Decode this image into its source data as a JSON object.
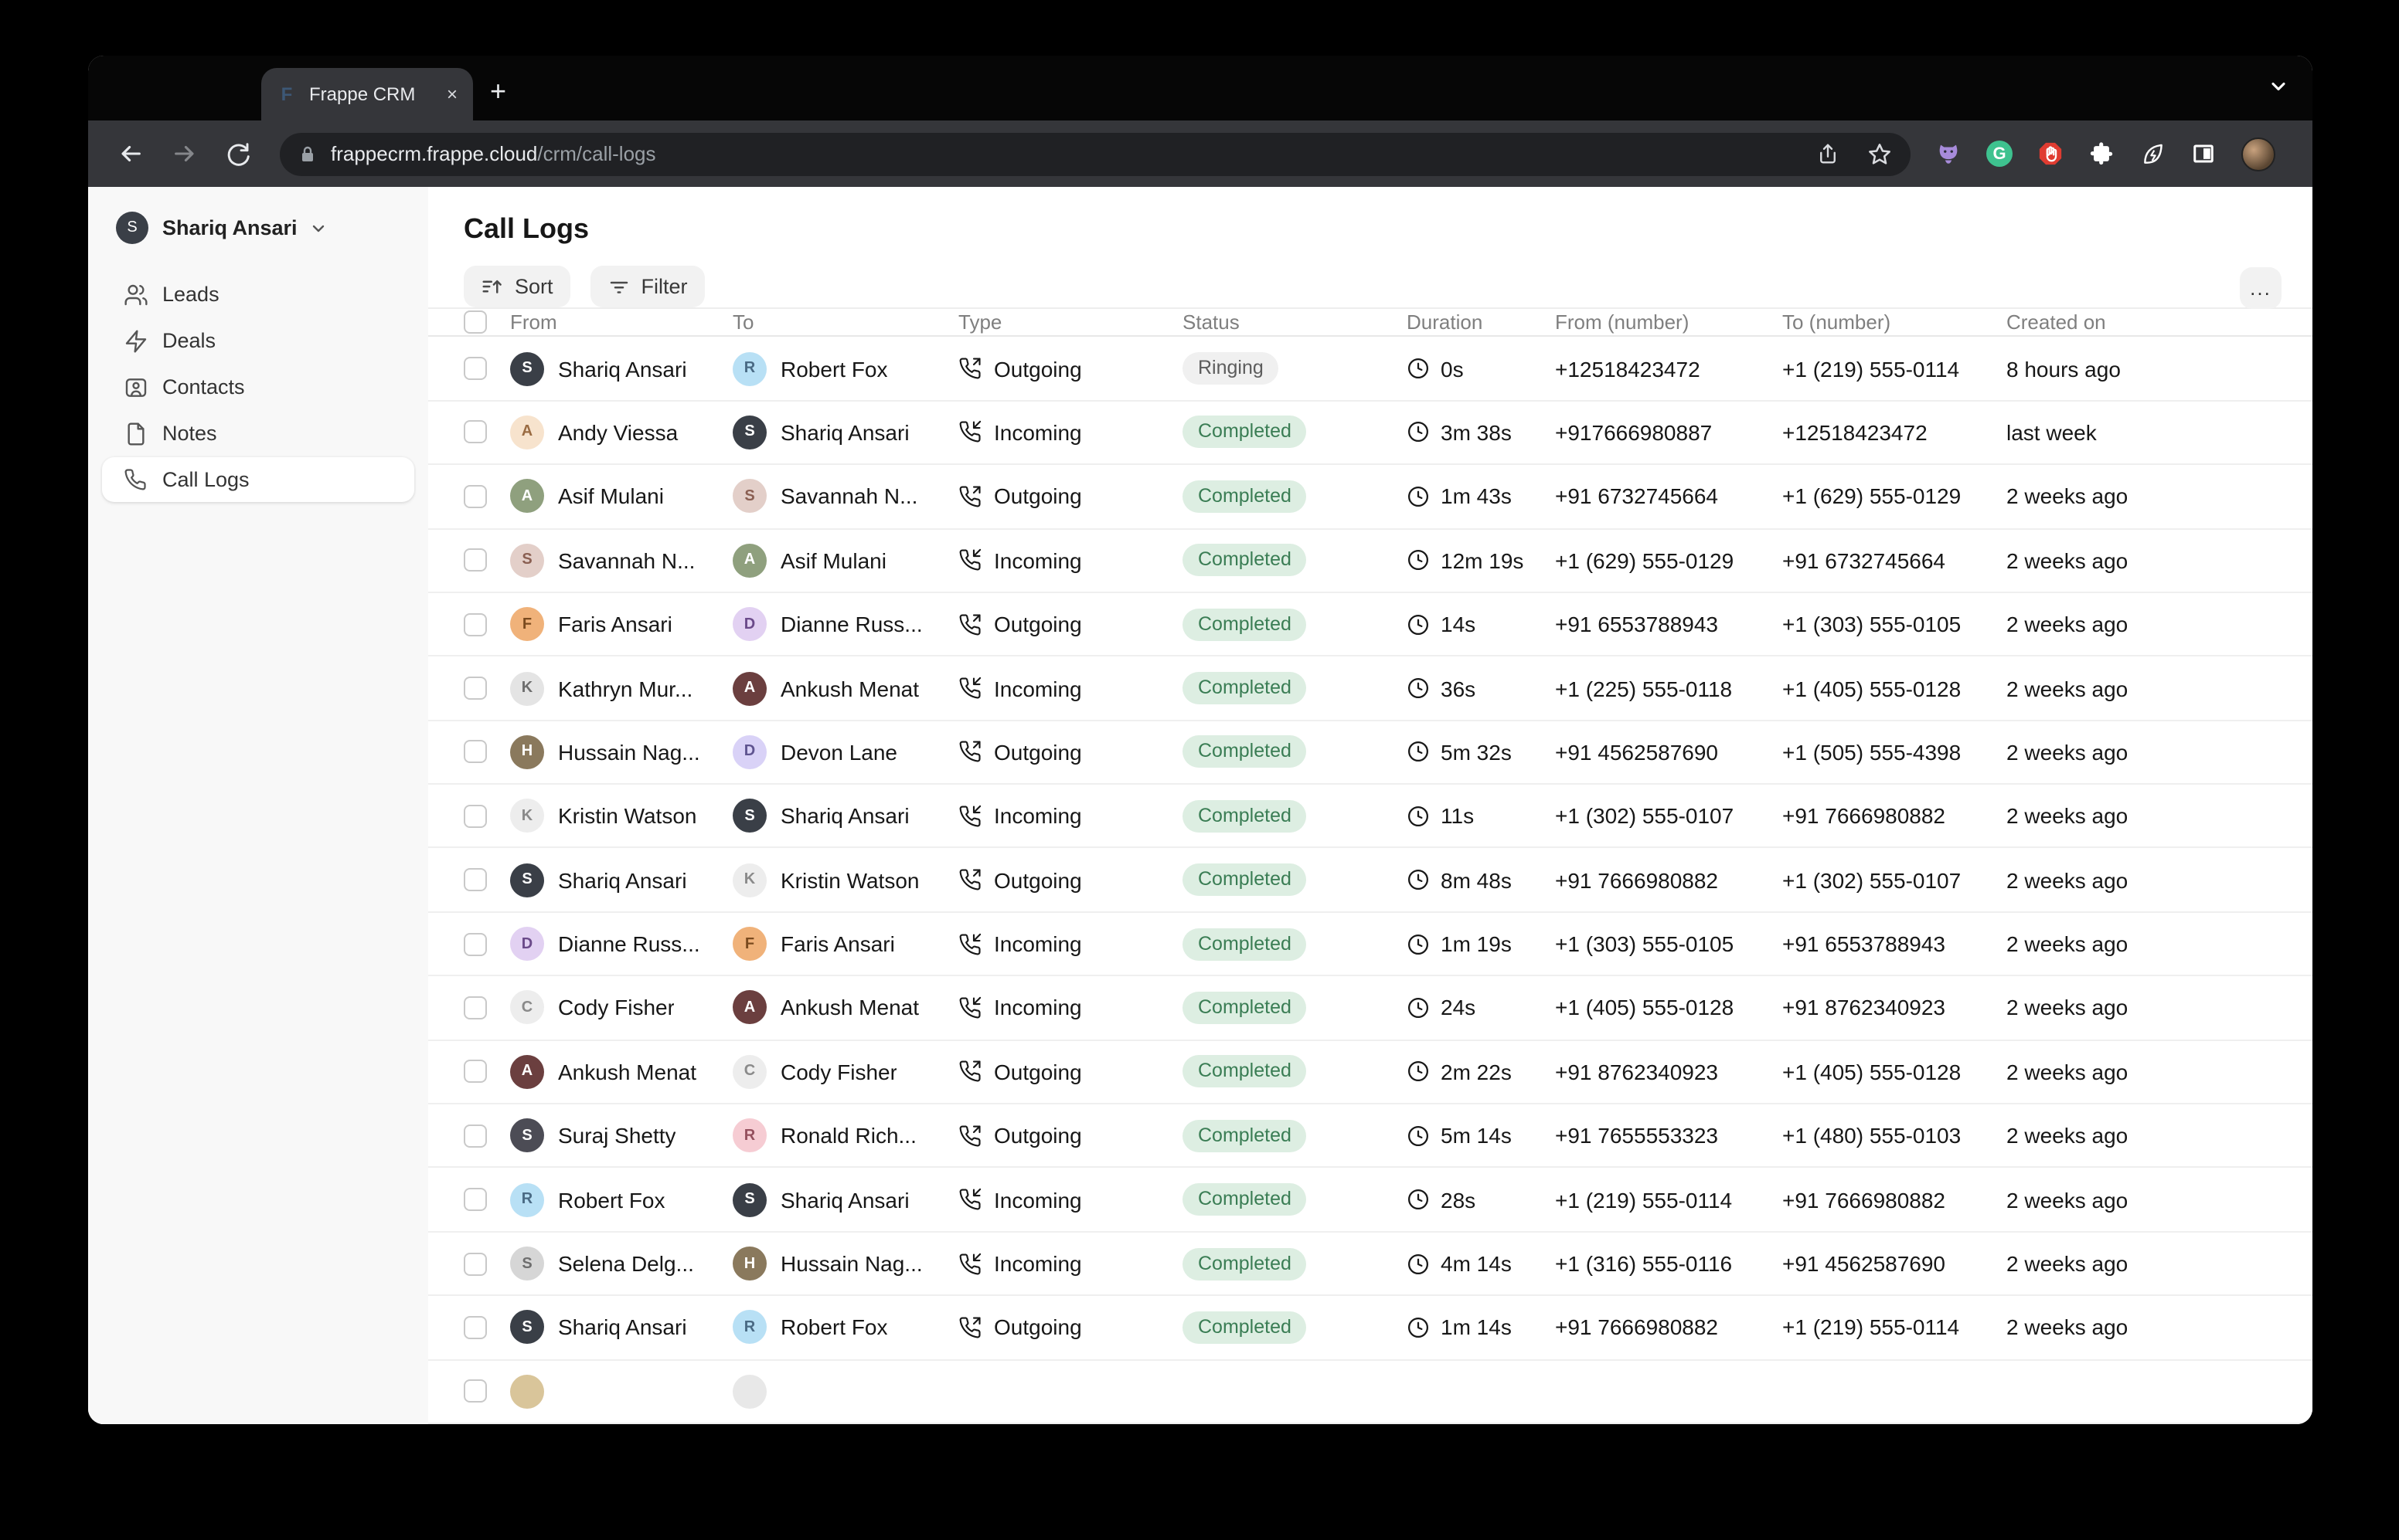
{
  "browser": {
    "tab_title": "Frappe CRM",
    "favicon_letter": "F",
    "new_tab_label": "+",
    "close_tab_label": "×",
    "url_domain": "frappecrm.frappe.cloud",
    "url_path": "/crm/call-logs",
    "menu_dots": "⋮",
    "extension_icons": [
      "github-cat-icon",
      "grammarly-icon",
      "adblock-icon",
      "puzzle-icon",
      "leaf-energy-icon",
      "sidebar-panel-icon"
    ]
  },
  "sidebar": {
    "user": {
      "name": "Shariq Ansari",
      "initial": "S"
    },
    "items": [
      {
        "label": "Leads",
        "icon": "users-icon",
        "active": false
      },
      {
        "label": "Deals",
        "icon": "zap-icon",
        "active": false
      },
      {
        "label": "Contacts",
        "icon": "contact-icon",
        "active": false
      },
      {
        "label": "Notes",
        "icon": "file-icon",
        "active": false
      },
      {
        "label": "Call Logs",
        "icon": "phone-icon",
        "active": true
      }
    ]
  },
  "header": {
    "title": "Call Logs",
    "sort_label": "Sort",
    "filter_label": "Filter",
    "more_label": "..."
  },
  "table": {
    "columns": [
      "From",
      "To",
      "Type",
      "Status",
      "Duration",
      "From (number)",
      "To (number)",
      "Created on"
    ],
    "rows": [
      {
        "from": "Shariq Ansari",
        "from_av": {
          "bg": "#3a3f47",
          "fg": "#ffffff",
          "i": "S"
        },
        "to": "Robert Fox",
        "to_av": {
          "bg": "#b8e0f5",
          "fg": "#4a6a84",
          "i": "R"
        },
        "type": "Outgoing",
        "status": "Ringing",
        "status_kind": "gray",
        "duration": "0s",
        "from_number": "+12518423472",
        "to_number": "+1 (219) 555-0114",
        "created": "8 hours ago"
      },
      {
        "from": "Andy Viessa",
        "from_av": {
          "bg": "#f7e3cd",
          "fg": "#9a6b42",
          "i": "A"
        },
        "to": "Shariq Ansari",
        "to_av": {
          "bg": "#3a3f47",
          "fg": "#ffffff",
          "i": "S"
        },
        "type": "Incoming",
        "status": "Completed",
        "status_kind": "green",
        "duration": "3m 38s",
        "from_number": "+917666980887",
        "to_number": "+12518423472",
        "created": "last week"
      },
      {
        "from": "Asif Mulani",
        "from_av": {
          "bg": "#8fa07e",
          "fg": "#ffffff",
          "i": "A"
        },
        "to": "Savannah N...",
        "to_av": {
          "bg": "#e3cfc9",
          "fg": "#8a5f52",
          "i": "S"
        },
        "type": "Outgoing",
        "status": "Completed",
        "status_kind": "green",
        "duration": "1m 43s",
        "from_number": "+91 6732745664",
        "to_number": "+1 (629) 555-0129",
        "created": "2 weeks ago"
      },
      {
        "from": "Savannah N...",
        "from_av": {
          "bg": "#e3cfc9",
          "fg": "#8a5f52",
          "i": "S"
        },
        "to": "Asif Mulani",
        "to_av": {
          "bg": "#8fa07e",
          "fg": "#ffffff",
          "i": "A"
        },
        "type": "Incoming",
        "status": "Completed",
        "status_kind": "green",
        "duration": "12m 19s",
        "from_number": "+1 (629) 555-0129",
        "to_number": "+91 6732745664",
        "created": "2 weeks ago"
      },
      {
        "from": "Faris Ansari",
        "from_av": {
          "bg": "#f0b27a",
          "fg": "#7a4a1e",
          "i": "F"
        },
        "to": "Dianne Russ...",
        "to_av": {
          "bg": "#e2d1f2",
          "fg": "#6b4a8a",
          "i": "D"
        },
        "type": "Outgoing",
        "status": "Completed",
        "status_kind": "green",
        "duration": "14s",
        "from_number": "+91 6553788943",
        "to_number": "+1 (303) 555-0105",
        "created": "2 weeks ago"
      },
      {
        "from": "Kathryn Mur...",
        "from_av": {
          "bg": "#e4e4e4",
          "fg": "#6e6e6e",
          "i": "K"
        },
        "to": "Ankush Menat",
        "to_av": {
          "bg": "#6b3f3f",
          "fg": "#ffffff",
          "i": "A"
        },
        "type": "Incoming",
        "status": "Completed",
        "status_kind": "green",
        "duration": "36s",
        "from_number": "+1 (225) 555-0118",
        "to_number": "+1 (405) 555-0128",
        "created": "2 weeks ago"
      },
      {
        "from": "Hussain Nag...",
        "from_av": {
          "bg": "#8a795d",
          "fg": "#ffffff",
          "i": "H"
        },
        "to": "Devon Lane",
        "to_av": {
          "bg": "#d9d2f7",
          "fg": "#5f5490",
          "i": "D"
        },
        "type": "Outgoing",
        "status": "Completed",
        "status_kind": "green",
        "duration": "5m 32s",
        "from_number": "+91 4562587690",
        "to_number": "+1 (505) 555-4398",
        "created": "2 weeks ago"
      },
      {
        "from": "Kristin Watson",
        "from_av": {
          "bg": "#ededed",
          "fg": "#8a8a8a",
          "i": "K"
        },
        "to": "Shariq Ansari",
        "to_av": {
          "bg": "#3a3f47",
          "fg": "#ffffff",
          "i": "S"
        },
        "type": "Incoming",
        "status": "Completed",
        "status_kind": "green",
        "duration": "11s",
        "from_number": "+1 (302) 555-0107",
        "to_number": "+91 7666980882",
        "created": "2 weeks ago"
      },
      {
        "from": "Shariq Ansari",
        "from_av": {
          "bg": "#3a3f47",
          "fg": "#ffffff",
          "i": "S"
        },
        "to": "Kristin Watson",
        "to_av": {
          "bg": "#ededed",
          "fg": "#8a8a8a",
          "i": "K"
        },
        "type": "Outgoing",
        "status": "Completed",
        "status_kind": "green",
        "duration": "8m 48s",
        "from_number": "+91 7666980882",
        "to_number": "+1 (302) 555-0107",
        "created": "2 weeks ago"
      },
      {
        "from": "Dianne Russ...",
        "from_av": {
          "bg": "#e2d1f2",
          "fg": "#6b4a8a",
          "i": "D"
        },
        "to": "Faris Ansari",
        "to_av": {
          "bg": "#f0b27a",
          "fg": "#7a4a1e",
          "i": "F"
        },
        "type": "Incoming",
        "status": "Completed",
        "status_kind": "green",
        "duration": "1m 19s",
        "from_number": "+1 (303) 555-0105",
        "to_number": "+91 6553788943",
        "created": "2 weeks ago"
      },
      {
        "from": "Cody Fisher",
        "from_av": {
          "bg": "#ededed",
          "fg": "#8a8a8a",
          "i": "C"
        },
        "to": "Ankush Menat",
        "to_av": {
          "bg": "#6b3f3f",
          "fg": "#ffffff",
          "i": "A"
        },
        "type": "Incoming",
        "status": "Completed",
        "status_kind": "green",
        "duration": "24s",
        "from_number": "+1 (405) 555-0128",
        "to_number": "+91 8762340923",
        "created": "2 weeks ago"
      },
      {
        "from": "Ankush Menat",
        "from_av": {
          "bg": "#6b3f3f",
          "fg": "#ffffff",
          "i": "A"
        },
        "to": "Cody Fisher",
        "to_av": {
          "bg": "#ededed",
          "fg": "#8a8a8a",
          "i": "C"
        },
        "type": "Outgoing",
        "status": "Completed",
        "status_kind": "green",
        "duration": "2m 22s",
        "from_number": "+91 8762340923",
        "to_number": "+1 (405) 555-0128",
        "created": "2 weeks ago"
      },
      {
        "from": "Suraj Shetty",
        "from_av": {
          "bg": "#4c4c55",
          "fg": "#ffffff",
          "i": "S"
        },
        "to": "Ronald Rich...",
        "to_av": {
          "bg": "#f6ccd3",
          "fg": "#95505e",
          "i": "R"
        },
        "type": "Outgoing",
        "status": "Completed",
        "status_kind": "green",
        "duration": "5m 14s",
        "from_number": "+91 7655553323",
        "to_number": "+1 (480) 555-0103",
        "created": "2 weeks ago"
      },
      {
        "from": "Robert Fox",
        "from_av": {
          "bg": "#b8e0f5",
          "fg": "#4a6a84",
          "i": "R"
        },
        "to": "Shariq Ansari",
        "to_av": {
          "bg": "#3a3f47",
          "fg": "#ffffff",
          "i": "S"
        },
        "type": "Incoming",
        "status": "Completed",
        "status_kind": "green",
        "duration": "28s",
        "from_number": "+1 (219) 555-0114",
        "to_number": "+91 7666980882",
        "created": "2 weeks ago"
      },
      {
        "from": "Selena Delg...",
        "from_av": {
          "bg": "#d6d6d6",
          "fg": "#6e6e6e",
          "i": "S"
        },
        "to": "Hussain Nag...",
        "to_av": {
          "bg": "#8a795d",
          "fg": "#ffffff",
          "i": "H"
        },
        "type": "Incoming",
        "status": "Completed",
        "status_kind": "green",
        "duration": "4m 14s",
        "from_number": "+1 (316) 555-0116",
        "to_number": "+91 4562587690",
        "created": "2 weeks ago"
      },
      {
        "from": "Shariq Ansari",
        "from_av": {
          "bg": "#3a3f47",
          "fg": "#ffffff",
          "i": "S"
        },
        "to": "Robert Fox",
        "to_av": {
          "bg": "#b8e0f5",
          "fg": "#4a6a84",
          "i": "R"
        },
        "type": "Outgoing",
        "status": "Completed",
        "status_kind": "green",
        "duration": "1m 14s",
        "from_number": "+91 7666980882",
        "to_number": "+1 (219) 555-0114",
        "created": "2 weeks ago"
      },
      {
        "from": "",
        "from_av": {
          "bg": "#d9c59a",
          "fg": "#d9c59a",
          "i": ""
        },
        "to": "",
        "to_av": {
          "bg": "#e8e8e8",
          "fg": "#e8e8e8",
          "i": ""
        },
        "type": "",
        "status": "",
        "status_kind": "green",
        "duration": "",
        "from_number": "",
        "to_number": "",
        "created": "",
        "partial": true
      }
    ]
  }
}
